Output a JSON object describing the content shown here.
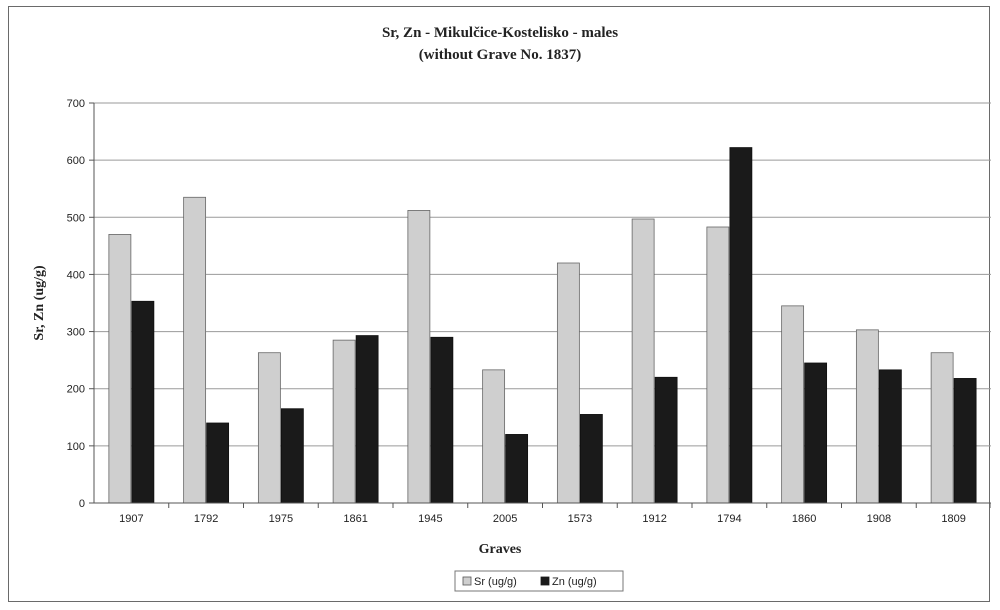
{
  "chart_data": {
    "type": "bar",
    "title": "Sr, Zn - Mikulčice-Kostelisko - males",
    "subtitle": "(without Grave No. 1837)",
    "xlabel": "Graves",
    "ylabel": "Sr, Zn (ug/g)",
    "ylim": [
      0,
      700
    ],
    "yticks": [
      0,
      100,
      200,
      300,
      400,
      500,
      600,
      700
    ],
    "grid": true,
    "legend_position": "bottom",
    "categories": [
      "1907",
      "1792",
      "1975",
      "1861",
      "1945",
      "2005",
      "1573",
      "1912",
      "1794",
      "1860",
      "1908",
      "1809"
    ],
    "series": [
      {
        "name": "Sr (ug/g)",
        "color": "#cfcfcf",
        "values": [
          470,
          535,
          263,
          285,
          512,
          233,
          420,
          497,
          483,
          345,
          303,
          263
        ]
      },
      {
        "name": "Zn (ug/g)",
        "color": "#1a1a1a",
        "values": [
          353,
          140,
          165,
          293,
          290,
          120,
          155,
          220,
          622,
          245,
          233,
          218
        ]
      }
    ]
  }
}
